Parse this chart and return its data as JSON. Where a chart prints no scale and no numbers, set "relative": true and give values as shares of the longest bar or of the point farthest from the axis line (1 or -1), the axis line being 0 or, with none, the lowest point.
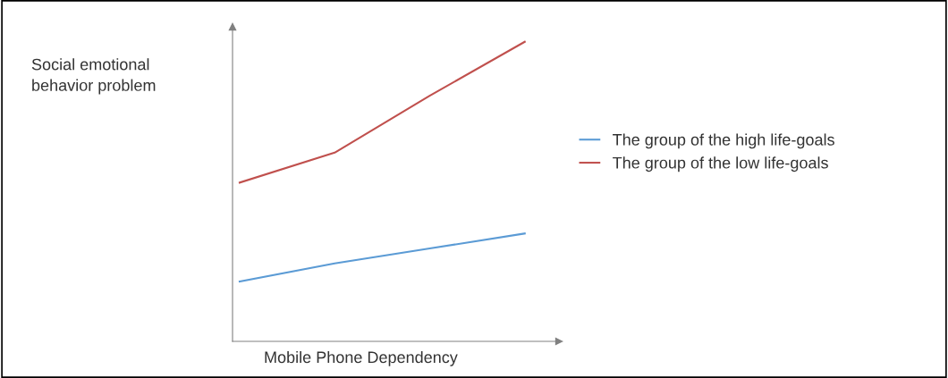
{
  "chart_data": {
    "type": "line",
    "relative": true,
    "xlabel": "Mobile Phone Dependency",
    "ylabel": "Social emotional\nbehavior problem",
    "categories": [
      null,
      null,
      null,
      null
    ],
    "series": [
      {
        "name": "The group of the high life-goals",
        "color": "#5b9bd5",
        "values": [
          0.2,
          0.26,
          0.31,
          0.36
        ]
      },
      {
        "name": "The group of the low life-goals",
        "color": "#c0504d",
        "values": [
          0.53,
          0.63,
          0.82,
          1
        ]
      }
    ],
    "legend": "right",
    "grid": false,
    "marker": "none",
    "line_style": "solid"
  }
}
